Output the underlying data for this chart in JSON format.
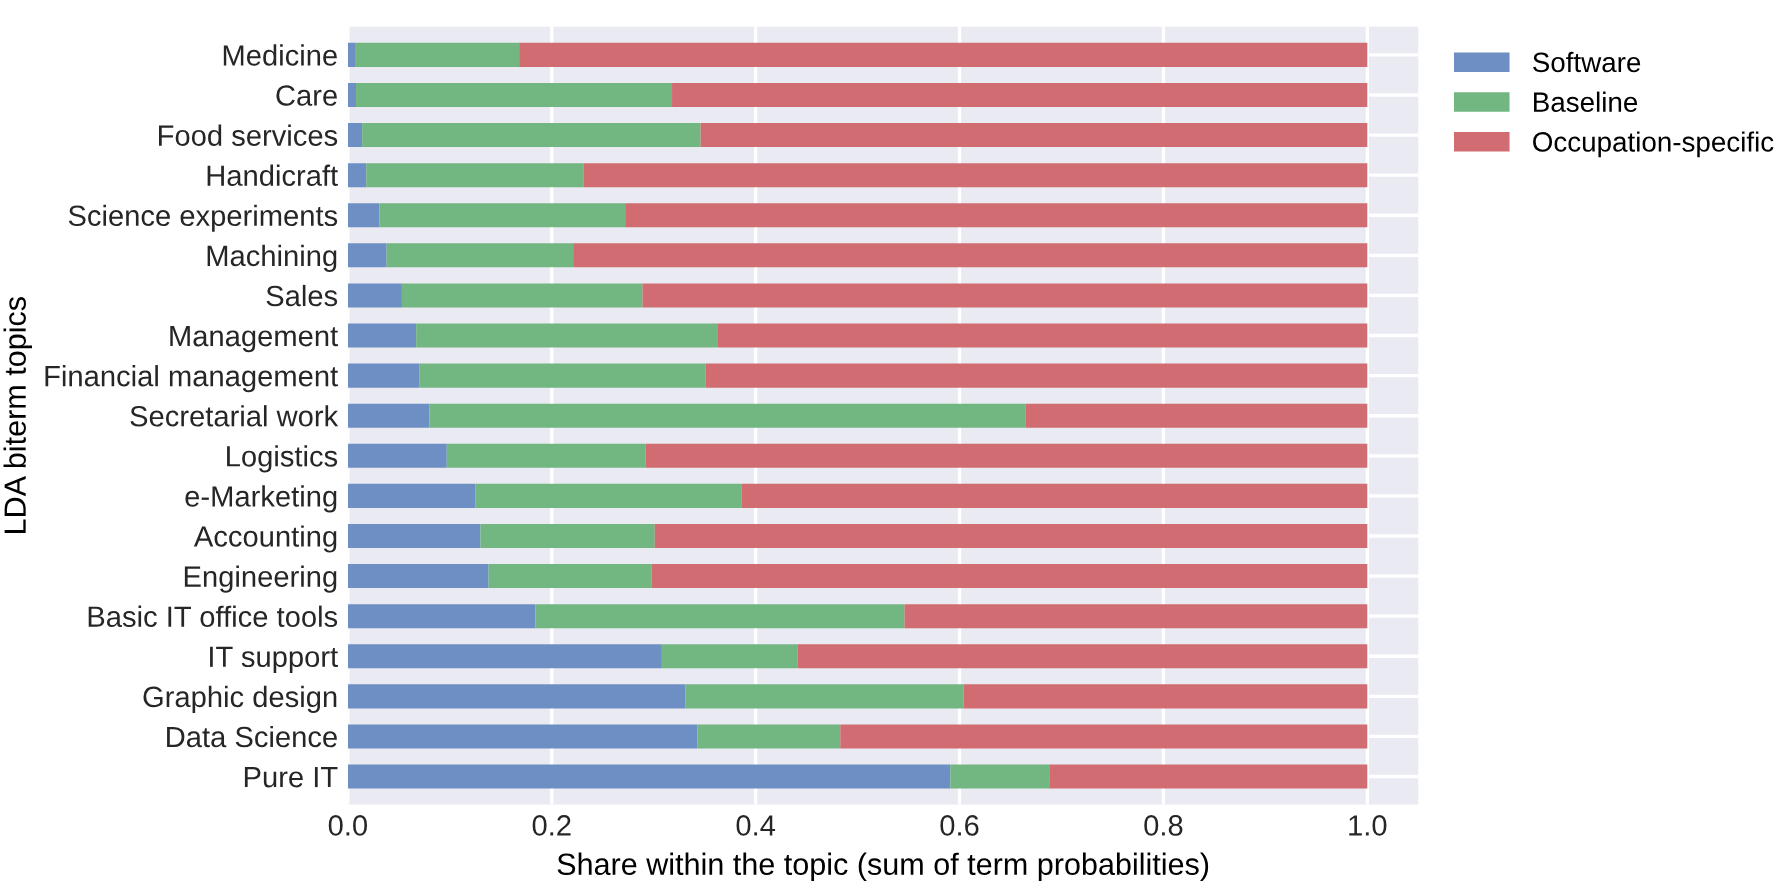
{
  "chart_data": {
    "type": "bar",
    "orientation": "horizontal",
    "stacked": true,
    "xlabel": "Share within the topic (sum of term probabilities)",
    "ylabel": "LDA biterm topics",
    "categories": [
      "Medicine",
      "Care",
      "Food services",
      "Handicraft",
      "Science experiments",
      "Machining",
      "Sales",
      "Management",
      "Financial management",
      "Secretarial work",
      "Logistics",
      "e-Marketing",
      "Accounting",
      "Engineering",
      "Basic IT office tools",
      "IT support",
      "Graphic design",
      "Data Science",
      "Pure IT"
    ],
    "series": [
      {
        "name": "Software",
        "color": "#6d8fc4",
        "values": [
          0.007,
          0.008,
          0.014,
          0.018,
          0.031,
          0.038,
          0.053,
          0.067,
          0.07,
          0.08,
          0.097,
          0.125,
          0.13,
          0.138,
          0.184,
          0.308,
          0.331,
          0.343,
          0.591
        ]
      },
      {
        "name": "Baseline",
        "color": "#72b681",
        "values": [
          0.161,
          0.31,
          0.332,
          0.213,
          0.241,
          0.183,
          0.236,
          0.296,
          0.281,
          0.585,
          0.195,
          0.261,
          0.171,
          0.16,
          0.362,
          0.133,
          0.273,
          0.14,
          0.097
        ]
      },
      {
        "name": "Occupation-specific",
        "color": "#d06c72",
        "values": [
          0.832,
          0.682,
          0.654,
          0.769,
          0.728,
          0.779,
          0.711,
          0.637,
          0.649,
          0.335,
          0.708,
          0.614,
          0.699,
          0.702,
          0.454,
          0.559,
          0.396,
          0.517,
          0.312
        ]
      }
    ],
    "xlim": [
      0,
      1.05
    ],
    "xticks": [
      {
        "value": 0,
        "label": "0.0"
      },
      0.2,
      0.4,
      0.6,
      0.8,
      {
        "value": 1,
        "label": "1.0"
      }
    ],
    "grid": true,
    "legend": "top right"
  }
}
